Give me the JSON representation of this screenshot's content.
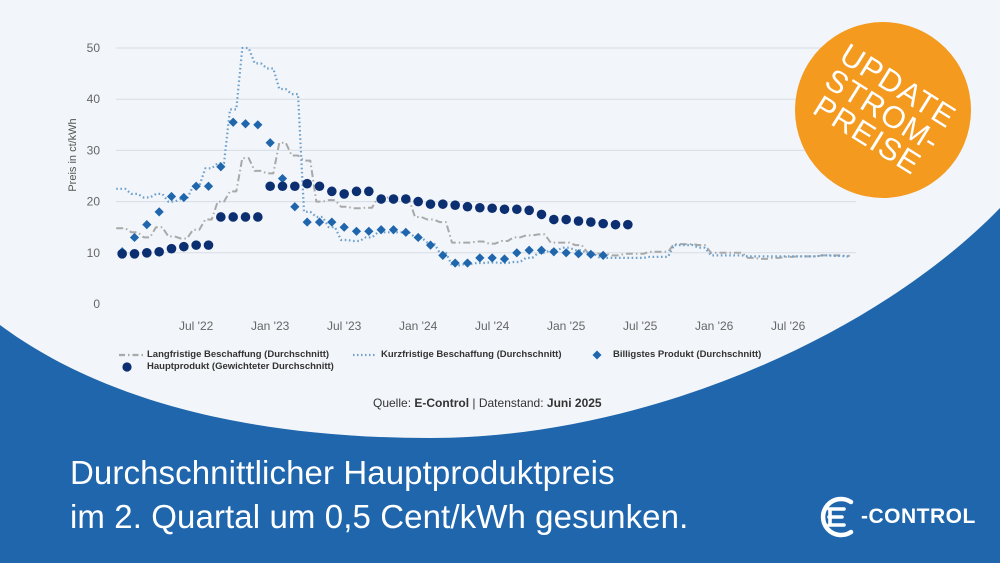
{
  "chart_data": {
    "type": "line",
    "ylabel": "Preis in ct/kWh",
    "ylim": [
      0,
      50
    ],
    "yticks": [
      "0",
      "10",
      "20",
      "30",
      "40",
      "50"
    ],
    "xlim": [
      "2022-01",
      "2026-12"
    ],
    "xticks": [
      {
        "date": "2022-07",
        "label": "Jul '22"
      },
      {
        "date": "2023-01",
        "label": "Jan '23"
      },
      {
        "date": "2023-07",
        "label": "Jul '23"
      },
      {
        "date": "2024-01",
        "label": "Jan '24"
      },
      {
        "date": "2024-07",
        "label": "Jul '24"
      },
      {
        "date": "2025-01",
        "label": "Jan '25"
      },
      {
        "date": "2025-07",
        "label": "Jul '25"
      },
      {
        "date": "2026-01",
        "label": "Jan '26"
      },
      {
        "date": "2026-07",
        "label": "Jul '26"
      }
    ],
    "grid": "horizontal",
    "series": [
      {
        "name": "Langfristige Beschaffung (Durchschnitt)",
        "style": "dash-dot",
        "color": "#a9a9a9",
        "points": [
          [
            "2022-01",
            14.8
          ],
          [
            "2022-02",
            14
          ],
          [
            "2022-03",
            13
          ],
          [
            "2022-04",
            15
          ],
          [
            "2022-05",
            13.2
          ],
          [
            "2022-06",
            12.8
          ],
          [
            "2022-07",
            14.5
          ],
          [
            "2022-08",
            16.5
          ],
          [
            "2022-09",
            20
          ],
          [
            "2022-10",
            22
          ],
          [
            "2022-11",
            28.5
          ],
          [
            "2022-12",
            26
          ],
          [
            "2023-01",
            25.5
          ],
          [
            "2023-02",
            31.5
          ],
          [
            "2023-03",
            29
          ],
          [
            "2023-04",
            28
          ],
          [
            "2023-05",
            20
          ],
          [
            "2023-06",
            20.3
          ],
          [
            "2023-07",
            19
          ],
          [
            "2023-08",
            18.7
          ],
          [
            "2023-09",
            18.8
          ],
          [
            "2023-10",
            20.8
          ],
          [
            "2023-11",
            20.8
          ],
          [
            "2023-12",
            20.5
          ],
          [
            "2024-01",
            17
          ],
          [
            "2024-02",
            16.5
          ],
          [
            "2024-03",
            16
          ],
          [
            "2024-04",
            12
          ],
          [
            "2024-05",
            12
          ],
          [
            "2024-06",
            12.2
          ],
          [
            "2024-07",
            11.8
          ],
          [
            "2024-08",
            12.3
          ],
          [
            "2024-09",
            13
          ],
          [
            "2024-10",
            13.4
          ],
          [
            "2024-11",
            13.6
          ],
          [
            "2024-12",
            12
          ],
          [
            "2025-01",
            12
          ],
          [
            "2025-02",
            11.5
          ],
          [
            "2025-03",
            10
          ],
          [
            "2025-04",
            9.8
          ],
          [
            "2025-05",
            9.5
          ],
          [
            "2025-06",
            9.8
          ],
          [
            "2025-07",
            9.8
          ],
          [
            "2025-08",
            10.2
          ],
          [
            "2025-09",
            10.2
          ],
          [
            "2025-10",
            11.7
          ],
          [
            "2025-11",
            11.7
          ],
          [
            "2025-12",
            11.5
          ],
          [
            "2026-01",
            10
          ],
          [
            "2026-02",
            10
          ],
          [
            "2026-03",
            10
          ],
          [
            "2026-04",
            9
          ],
          [
            "2026-05",
            8.8
          ],
          [
            "2026-06",
            9
          ],
          [
            "2026-07",
            9.2
          ],
          [
            "2026-08",
            9.3
          ],
          [
            "2026-09",
            9.3
          ],
          [
            "2026-10",
            9.5
          ],
          [
            "2026-11",
            9.5
          ],
          [
            "2026-12",
            9.4
          ]
        ]
      },
      {
        "name": "Kurzfristige Beschaffung (Durchschnitt)",
        "style": "dotted",
        "color": "#6fa1cc",
        "points": [
          [
            "2022-01",
            22.5
          ],
          [
            "2022-02",
            21.5
          ],
          [
            "2022-03",
            20.8
          ],
          [
            "2022-04",
            21.5
          ],
          [
            "2022-05",
            20
          ],
          [
            "2022-06",
            20.5
          ],
          [
            "2022-07",
            23
          ],
          [
            "2022-08",
            26.5
          ],
          [
            "2022-09",
            27.5
          ],
          [
            "2022-10",
            38
          ],
          [
            "2022-11",
            50
          ],
          [
            "2022-12",
            47
          ],
          [
            "2023-01",
            46
          ],
          [
            "2023-02",
            42
          ],
          [
            "2023-03",
            41
          ],
          [
            "2023-04",
            18
          ],
          [
            "2023-05",
            17
          ],
          [
            "2023-06",
            15
          ],
          [
            "2023-07",
            12.5
          ],
          [
            "2023-08",
            12.3
          ],
          [
            "2023-09",
            13
          ],
          [
            "2023-10",
            14
          ],
          [
            "2023-11",
            14
          ],
          [
            "2023-12",
            14
          ],
          [
            "2024-01",
            13
          ],
          [
            "2024-02",
            12
          ],
          [
            "2024-03",
            10
          ],
          [
            "2024-04",
            7.5
          ],
          [
            "2024-05",
            7.8
          ],
          [
            "2024-06",
            8
          ],
          [
            "2024-07",
            8.1
          ],
          [
            "2024-08",
            8
          ],
          [
            "2024-09",
            8.2
          ],
          [
            "2024-10",
            9
          ],
          [
            "2024-11",
            10
          ],
          [
            "2024-12",
            10.5
          ],
          [
            "2025-01",
            11
          ],
          [
            "2025-02",
            10.5
          ],
          [
            "2025-03",
            9.8
          ],
          [
            "2025-04",
            9
          ],
          [
            "2025-05",
            9
          ],
          [
            "2025-06",
            9
          ],
          [
            "2025-07",
            9
          ],
          [
            "2025-08",
            9.2
          ],
          [
            "2025-09",
            9.2
          ],
          [
            "2025-10",
            11.5
          ],
          [
            "2025-11",
            11.5
          ],
          [
            "2025-12",
            11
          ],
          [
            "2026-01",
            9.5
          ],
          [
            "2026-02",
            9.5
          ],
          [
            "2026-03",
            9.5
          ],
          [
            "2026-04",
            9.3
          ],
          [
            "2026-05",
            9.3
          ],
          [
            "2026-06",
            9.3
          ],
          [
            "2026-07",
            9.3
          ],
          [
            "2026-08",
            9.3
          ],
          [
            "2026-09",
            9.3
          ],
          [
            "2026-10",
            9.5
          ],
          [
            "2026-11",
            9.4
          ],
          [
            "2026-12",
            9.3
          ]
        ]
      },
      {
        "name": "Billigstes Produkt (Durchschnitt)",
        "style": "diamond",
        "color": "#1f66ad",
        "points": [
          [
            "2022-01",
            10.2
          ],
          [
            "2022-02",
            13
          ],
          [
            "2022-03",
            15.5
          ],
          [
            "2022-04",
            18
          ],
          [
            "2022-05",
            21
          ],
          [
            "2022-06",
            20.8
          ],
          [
            "2022-07",
            23
          ],
          [
            "2022-08",
            23
          ],
          [
            "2022-09",
            26.8
          ],
          [
            "2022-10",
            35.5
          ],
          [
            "2022-11",
            35.2
          ],
          [
            "2022-12",
            35
          ],
          [
            "2023-01",
            31.5
          ],
          [
            "2023-02",
            24.5
          ],
          [
            "2023-03",
            19
          ],
          [
            "2023-04",
            16
          ],
          [
            "2023-05",
            16
          ],
          [
            "2023-06",
            16
          ],
          [
            "2023-07",
            15
          ],
          [
            "2023-08",
            14.2
          ],
          [
            "2023-09",
            14.2
          ],
          [
            "2023-10",
            14.5
          ],
          [
            "2023-11",
            14.5
          ],
          [
            "2023-12",
            14
          ],
          [
            "2024-01",
            13
          ],
          [
            "2024-02",
            11.5
          ],
          [
            "2024-03",
            9.5
          ],
          [
            "2024-04",
            8
          ],
          [
            "2024-05",
            8
          ],
          [
            "2024-06",
            9
          ],
          [
            "2024-07",
            9
          ],
          [
            "2024-08",
            8.8
          ],
          [
            "2024-09",
            10
          ],
          [
            "2024-10",
            10.5
          ],
          [
            "2024-11",
            10.5
          ],
          [
            "2024-12",
            10.2
          ],
          [
            "2025-01",
            10
          ],
          [
            "2025-02",
            9.8
          ],
          [
            "2025-03",
            9.7
          ],
          [
            "2025-04",
            9.5
          ]
        ]
      },
      {
        "name": "Hauptprodukt (Gewichteter Durchschnitt)",
        "style": "circle",
        "color": "#0c2f72",
        "points": [
          [
            "2022-01",
            9.8
          ],
          [
            "2022-02",
            9.8
          ],
          [
            "2022-03",
            10
          ],
          [
            "2022-04",
            10.2
          ],
          [
            "2022-05",
            10.8
          ],
          [
            "2022-06",
            11.2
          ],
          [
            "2022-07",
            11.5
          ],
          [
            "2022-08",
            11.5
          ],
          [
            "2022-09",
            17
          ],
          [
            "2022-10",
            17
          ],
          [
            "2022-11",
            17
          ],
          [
            "2022-12",
            17
          ],
          [
            "2023-01",
            23
          ],
          [
            "2023-02",
            23
          ],
          [
            "2023-03",
            23
          ],
          [
            "2023-04",
            23.5
          ],
          [
            "2023-05",
            23
          ],
          [
            "2023-06",
            22
          ],
          [
            "2023-07",
            21.5
          ],
          [
            "2023-08",
            22
          ],
          [
            "2023-09",
            22
          ],
          [
            "2023-10",
            20.5
          ],
          [
            "2023-11",
            20.5
          ],
          [
            "2023-12",
            20.5
          ],
          [
            "2024-01",
            20
          ],
          [
            "2024-02",
            19.5
          ],
          [
            "2024-03",
            19.5
          ],
          [
            "2024-04",
            19.3
          ],
          [
            "2024-05",
            19
          ],
          [
            "2024-06",
            18.8
          ],
          [
            "2024-07",
            18.7
          ],
          [
            "2024-08",
            18.5
          ],
          [
            "2024-09",
            18.5
          ],
          [
            "2024-10",
            18.3
          ],
          [
            "2024-11",
            17.5
          ],
          [
            "2024-12",
            16.5
          ],
          [
            "2025-01",
            16.5
          ],
          [
            "2025-02",
            16.2
          ],
          [
            "2025-03",
            16
          ],
          [
            "2025-04",
            15.7
          ],
          [
            "2025-05",
            15.5
          ],
          [
            "2025-06",
            15.5
          ]
        ]
      }
    ]
  },
  "legend": {
    "long_term": "Langfristige Beschaffung (Durchschnitt)",
    "short_term": "Kurzfristige Beschaffung (Durchschnitt)",
    "cheapest": "Billigstes Produkt (Durchschnitt)",
    "main_product": "Hauptprodukt (Gewichteter Durchschnitt)"
  },
  "source": {
    "label": "Quelle:",
    "source_name": "E-Control",
    "separator": "|",
    "date_label": "Datenstand:",
    "date_value": "Juni 2025"
  },
  "headline": {
    "line1": "Durchschnittlicher Hauptproduktpreis",
    "line2": "im 2. Quartal um 0,5 Cent/kWh gesunken."
  },
  "badge": {
    "line1": "UPDATE",
    "line2": "STROM-",
    "line3": "PREISE",
    "color": "#f39a1f"
  },
  "logo": {
    "text": "-CONTROL",
    "mark": "E"
  },
  "colors": {
    "background_panel": "#f2f5f9",
    "brand_blue": "#1f66ad"
  }
}
